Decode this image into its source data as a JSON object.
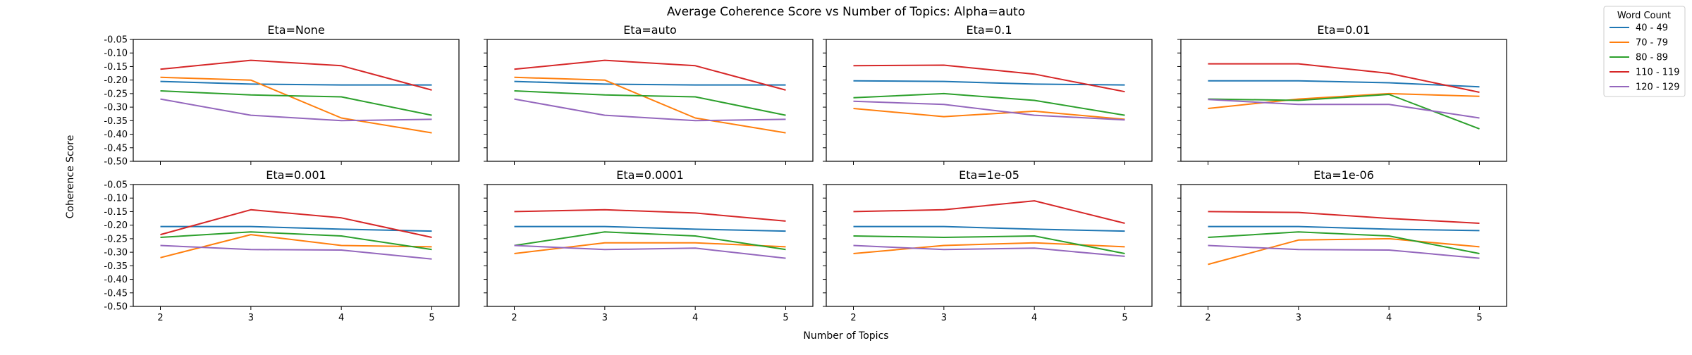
{
  "figure": {
    "title": "Average Coherence Score vs Number of Topics: Alpha=auto",
    "xlabel": "Number of Topics",
    "ylabel": "Coherence Score"
  },
  "legend": {
    "title": "Word Count",
    "placement": "outside-top-right"
  },
  "chart_data": {
    "type": "line",
    "x": [
      2,
      3,
      4,
      5
    ],
    "xticks": [
      "2",
      "3",
      "4",
      "5"
    ],
    "ylim": [
      -0.5,
      -0.05
    ],
    "yticks": [
      "-0.05",
      "-0.10",
      "-0.15",
      "-0.20",
      "-0.25",
      "-0.30",
      "-0.35",
      "-0.40",
      "-0.45",
      "-0.50"
    ],
    "grid": false,
    "series_meta": [
      {
        "name": "40 - 49",
        "color": "#1f77b4"
      },
      {
        "name": "70 - 79",
        "color": "#ff7f0e"
      },
      {
        "name": "80 - 89",
        "color": "#2ca02c"
      },
      {
        "name": "110 - 119",
        "color": "#d62728"
      },
      {
        "name": "120 - 129",
        "color": "#9467bd"
      }
    ],
    "panels": [
      {
        "title": "Eta=None",
        "series": [
          {
            "name": "40 - 49",
            "values": [
              -0.205,
              -0.215,
              -0.218,
              -0.218
            ]
          },
          {
            "name": "70 - 79",
            "values": [
              -0.19,
              -0.2,
              -0.34,
              -0.395
            ]
          },
          {
            "name": "80 - 89",
            "values": [
              -0.24,
              -0.255,
              -0.262,
              -0.33
            ]
          },
          {
            "name": "110 - 119",
            "values": [
              -0.16,
              -0.127,
              -0.147,
              -0.237
            ]
          },
          {
            "name": "120 - 129",
            "values": [
              -0.27,
              -0.33,
              -0.35,
              -0.345
            ]
          }
        ]
      },
      {
        "title": "Eta=auto",
        "series": [
          {
            "name": "40 - 49",
            "values": [
              -0.205,
              -0.215,
              -0.218,
              -0.218
            ]
          },
          {
            "name": "70 - 79",
            "values": [
              -0.19,
              -0.2,
              -0.34,
              -0.395
            ]
          },
          {
            "name": "80 - 89",
            "values": [
              -0.24,
              -0.255,
              -0.262,
              -0.33
            ]
          },
          {
            "name": "110 - 119",
            "values": [
              -0.16,
              -0.127,
              -0.147,
              -0.237
            ]
          },
          {
            "name": "120 - 129",
            "values": [
              -0.27,
              -0.33,
              -0.35,
              -0.345
            ]
          }
        ]
      },
      {
        "title": "Eta=0.1",
        "series": [
          {
            "name": "40 - 49",
            "values": [
              -0.203,
              -0.205,
              -0.215,
              -0.218
            ]
          },
          {
            "name": "70 - 79",
            "values": [
              -0.305,
              -0.335,
              -0.315,
              -0.345
            ]
          },
          {
            "name": "80 - 89",
            "values": [
              -0.265,
              -0.25,
              -0.275,
              -0.33
            ]
          },
          {
            "name": "110 - 119",
            "values": [
              -0.147,
              -0.145,
              -0.178,
              -0.243
            ]
          },
          {
            "name": "120 - 129",
            "values": [
              -0.278,
              -0.29,
              -0.33,
              -0.347
            ]
          }
        ]
      },
      {
        "title": "Eta=0.01",
        "series": [
          {
            "name": "40 - 49",
            "values": [
              -0.203,
              -0.203,
              -0.21,
              -0.225
            ]
          },
          {
            "name": "70 - 79",
            "values": [
              -0.305,
              -0.27,
              -0.25,
              -0.26
            ]
          },
          {
            "name": "80 - 89",
            "values": [
              -0.27,
              -0.275,
              -0.253,
              -0.38
            ]
          },
          {
            "name": "110 - 119",
            "values": [
              -0.14,
              -0.14,
              -0.175,
              -0.245
            ]
          },
          {
            "name": "120 - 129",
            "values": [
              -0.272,
              -0.29,
              -0.29,
              -0.34
            ]
          }
        ]
      },
      {
        "title": "Eta=0.001",
        "series": [
          {
            "name": "40 - 49",
            "values": [
              -0.205,
              -0.205,
              -0.215,
              -0.222
            ]
          },
          {
            "name": "70 - 79",
            "values": [
              -0.32,
              -0.235,
              -0.275,
              -0.28
            ]
          },
          {
            "name": "80 - 89",
            "values": [
              -0.245,
              -0.225,
              -0.24,
              -0.29
            ]
          },
          {
            "name": "110 - 119",
            "values": [
              -0.235,
              -0.143,
              -0.173,
              -0.245
            ]
          },
          {
            "name": "120 - 129",
            "values": [
              -0.275,
              -0.29,
              -0.292,
              -0.325
            ]
          }
        ]
      },
      {
        "title": "Eta=0.0001",
        "series": [
          {
            "name": "40 - 49",
            "values": [
              -0.205,
              -0.205,
              -0.215,
              -0.222
            ]
          },
          {
            "name": "70 - 79",
            "values": [
              -0.305,
              -0.265,
              -0.265,
              -0.28
            ]
          },
          {
            "name": "80 - 89",
            "values": [
              -0.275,
              -0.225,
              -0.24,
              -0.29
            ]
          },
          {
            "name": "110 - 119",
            "values": [
              -0.15,
              -0.143,
              -0.155,
              -0.185
            ]
          },
          {
            "name": "120 - 129",
            "values": [
              -0.275,
              -0.29,
              -0.285,
              -0.322
            ]
          }
        ]
      },
      {
        "title": "Eta=1e-05",
        "series": [
          {
            "name": "40 - 49",
            "values": [
              -0.205,
              -0.205,
              -0.215,
              -0.222
            ]
          },
          {
            "name": "70 - 79",
            "values": [
              -0.305,
              -0.275,
              -0.265,
              -0.28
            ]
          },
          {
            "name": "80 - 89",
            "values": [
              -0.24,
              -0.245,
              -0.24,
              -0.305
            ]
          },
          {
            "name": "110 - 119",
            "values": [
              -0.15,
              -0.143,
              -0.11,
              -0.193
            ]
          },
          {
            "name": "120 - 129",
            "values": [
              -0.275,
              -0.29,
              -0.285,
              -0.315
            ]
          }
        ]
      },
      {
        "title": "Eta=1e-06",
        "series": [
          {
            "name": "40 - 49",
            "values": [
              -0.205,
              -0.205,
              -0.215,
              -0.22
            ]
          },
          {
            "name": "70 - 79",
            "values": [
              -0.345,
              -0.255,
              -0.25,
              -0.28
            ]
          },
          {
            "name": "80 - 89",
            "values": [
              -0.245,
              -0.225,
              -0.24,
              -0.305
            ]
          },
          {
            "name": "110 - 119",
            "values": [
              -0.15,
              -0.153,
              -0.175,
              -0.193
            ]
          },
          {
            "name": "120 - 129",
            "values": [
              -0.275,
              -0.29,
              -0.292,
              -0.322
            ]
          }
        ]
      }
    ]
  }
}
